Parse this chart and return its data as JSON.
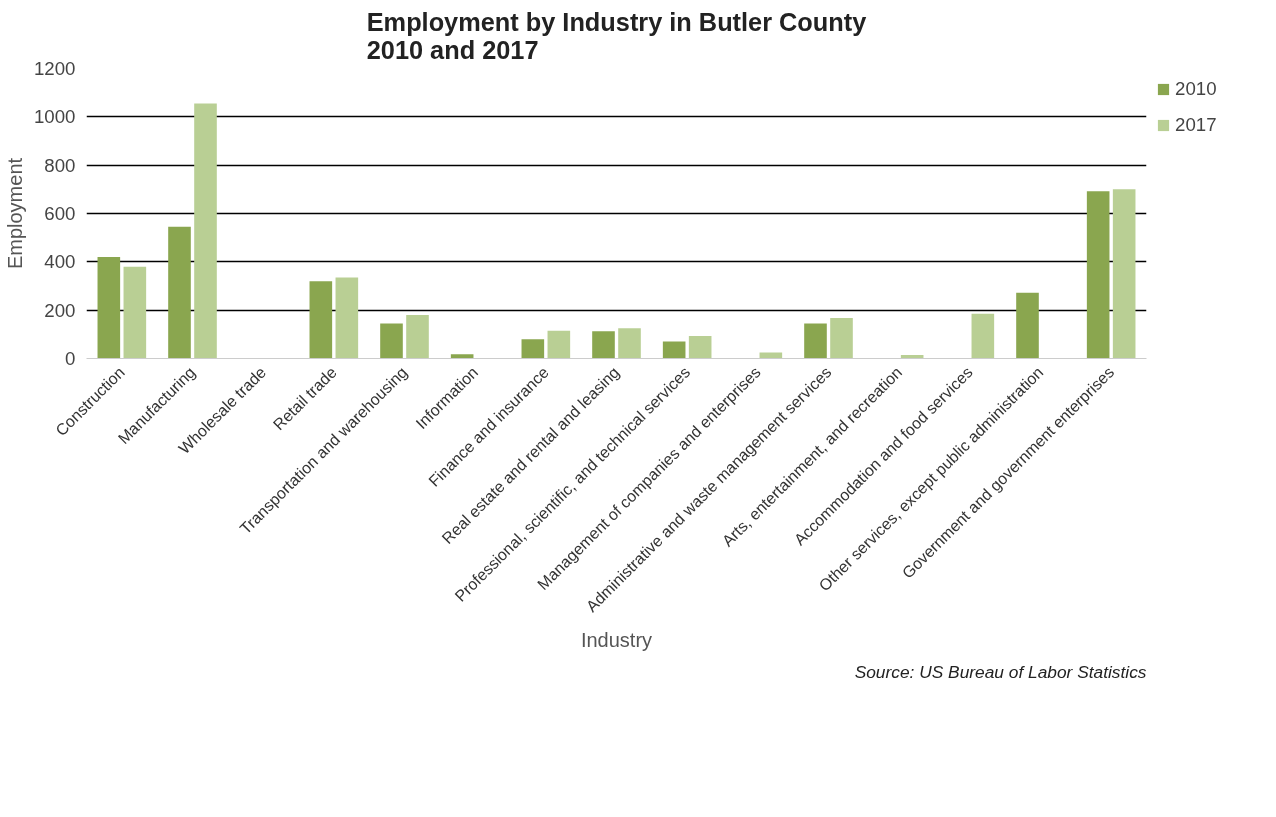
{
  "chart_data": {
    "type": "bar",
    "title": "Employment by Industry in Butler County\n2010 and 2017",
    "xlabel": "Industry",
    "ylabel": "Employment",
    "categories": [
      "Construction",
      "Manufacturing",
      "Wholesale trade",
      "Retail trade",
      "Transportation and warehousing",
      "Information",
      "Finance and insurance",
      "Real estate and rental and leasing",
      "Professional, scientific, and technical services",
      "Management of companies and enterprises",
      "Administrative and waste management services",
      "Arts, entertainment, and recreation",
      "Accommodation and food services",
      "Other services, except public administration",
      "Government and government enterprises"
    ],
    "series": [
      {
        "name": "2010",
        "color": "#8aa64f",
        "values": [
          420,
          545,
          null,
          320,
          145,
          18,
          80,
          113,
          70,
          null,
          145,
          null,
          null,
          272,
          692
        ]
      },
      {
        "name": "2017",
        "color": "#b9cf94",
        "values": [
          380,
          1055,
          null,
          335,
          180,
          null,
          115,
          125,
          93,
          25,
          168,
          15,
          185,
          null,
          700
        ]
      }
    ],
    "ylim": [
      0,
      1200
    ],
    "yticks": [
      0,
      200,
      400,
      600,
      800,
      1000,
      1200
    ],
    "grid": "y",
    "legend": "right",
    "annotations": [
      "Source: US Bureau of Labor Statistics"
    ]
  }
}
